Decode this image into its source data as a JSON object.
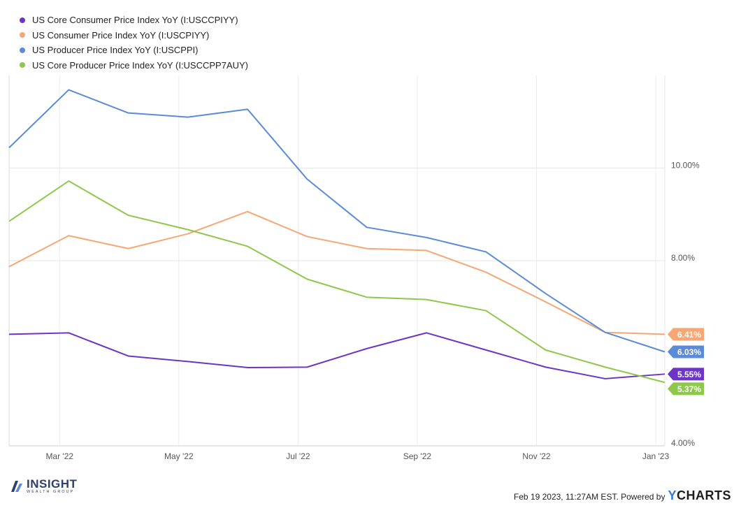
{
  "legend": [
    {
      "label": "US Core Consumer Price Index YoY (I:USCCPIYY)",
      "color": "#6c35c8"
    },
    {
      "label": "US Consumer Price Index YoY (I:USCPIYY)",
      "color": "#f7a674"
    },
    {
      "label": "US Producer Price Index YoY (I:USCPPI)",
      "color": "#5b8ad8"
    },
    {
      "label": "US Core Producer Price Index YoY (I:USCCPP7AUY)",
      "color": "#8ec84a"
    }
  ],
  "footer": {
    "timestamp": "Feb 19 2023, 11:27AM EST. Powered by",
    "brand_y": "Y",
    "brand_rest": "CHARTS"
  },
  "logo": {
    "name": "INSIGHT",
    "tagline": "WEALTH GROUP"
  },
  "chart_data": {
    "type": "line",
    "x": [
      "2022-02",
      "2022-03",
      "2022-04",
      "2022-05",
      "2022-06",
      "2022-07",
      "2022-08",
      "2022-09",
      "2022-10",
      "2022-11",
      "2022-12",
      "2023-01"
    ],
    "x_tick_labels": [
      "Mar '22",
      "May '22",
      "Jul '22",
      "Sep '22",
      "Nov '22",
      "Jan '23"
    ],
    "y_tick_labels": [
      "4.00%",
      "8.00%",
      "10.00%"
    ],
    "y_ticks": [
      4,
      8,
      10
    ],
    "ylim": [
      4,
      12
    ],
    "grid": true,
    "legend_position": "top-left",
    "series": [
      {
        "name": "US Core Consumer Price Index YoY (I:USCCPIYY)",
        "color": "#6c35c8",
        "values": [
          6.41,
          6.44,
          5.94,
          5.82,
          5.69,
          5.7,
          6.1,
          6.44,
          6.07,
          5.7,
          5.45,
          5.55
        ],
        "end_label": "5.55%"
      },
      {
        "name": "US Consumer Price Index YoY (I:USCPIYY)",
        "color": "#f7a674",
        "values": [
          7.87,
          8.54,
          8.26,
          8.58,
          9.06,
          8.52,
          8.26,
          8.22,
          7.75,
          7.11,
          6.45,
          6.41
        ],
        "end_label": "6.41%"
      },
      {
        "name": "US Producer Price Index YoY (I:USCPPI)",
        "color": "#5b8ad8",
        "values": [
          10.44,
          11.69,
          11.19,
          11.1,
          11.27,
          9.76,
          8.72,
          8.5,
          8.19,
          7.29,
          6.45,
          6.03
        ],
        "end_label": "6.03%"
      },
      {
        "name": "US Core Producer Price Index YoY (I:USCCPP7AUY)",
        "color": "#8ec84a",
        "values": [
          8.85,
          9.72,
          8.98,
          8.67,
          8.31,
          7.6,
          7.21,
          7.16,
          6.92,
          6.07,
          5.7,
          5.37
        ],
        "end_label": "5.37%"
      }
    ]
  }
}
